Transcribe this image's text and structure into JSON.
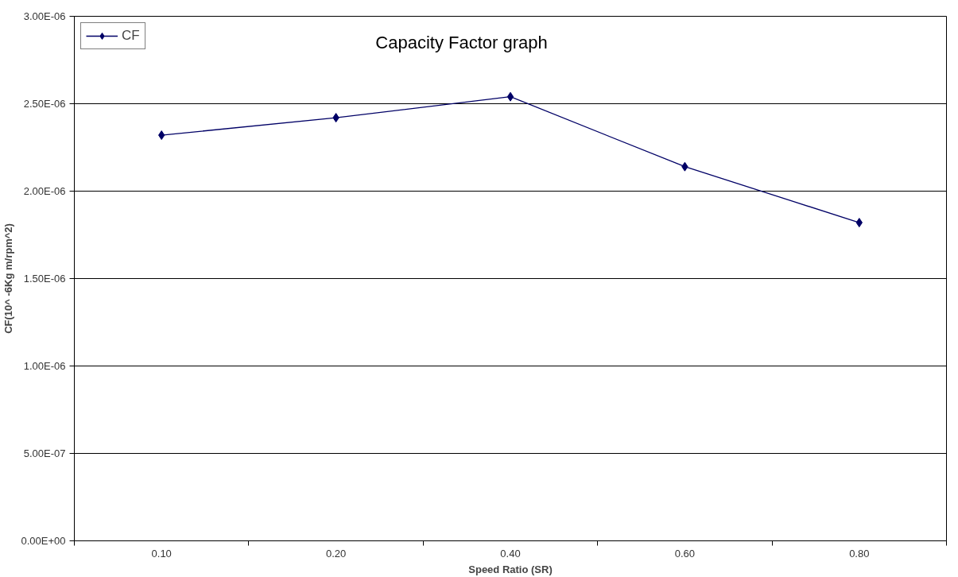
{
  "chart_data": {
    "type": "line",
    "title": "Capacity Factor graph",
    "xlabel": "Speed Ratio (SR)",
    "ylabel": "CF(10^ -6Kg m/rpm^2)",
    "categories": [
      "0.10",
      "0.20",
      "0.40",
      "0.60",
      "0.80"
    ],
    "series": [
      {
        "name": "CF",
        "color": "#000066",
        "values": [
          2.32e-06,
          2.42e-06,
          2.54e-06,
          2.14e-06,
          1.82e-06
        ]
      }
    ],
    "ylim": [
      0,
      3e-06
    ],
    "yticks": [
      {
        "value": 0,
        "label": "0.00E+00"
      },
      {
        "value": 5e-07,
        "label": "5.00E-07"
      },
      {
        "value": 1e-06,
        "label": "1.00E-06"
      },
      {
        "value": 1.5e-06,
        "label": "1.50E-06"
      },
      {
        "value": 2e-06,
        "label": "2.00E-06"
      },
      {
        "value": 2.5e-06,
        "label": "2.50E-06"
      },
      {
        "value": 3e-06,
        "label": "3.00E-06"
      }
    ],
    "grid": "y",
    "legend": "top left",
    "marker": "diamond",
    "line_style": "solid"
  }
}
